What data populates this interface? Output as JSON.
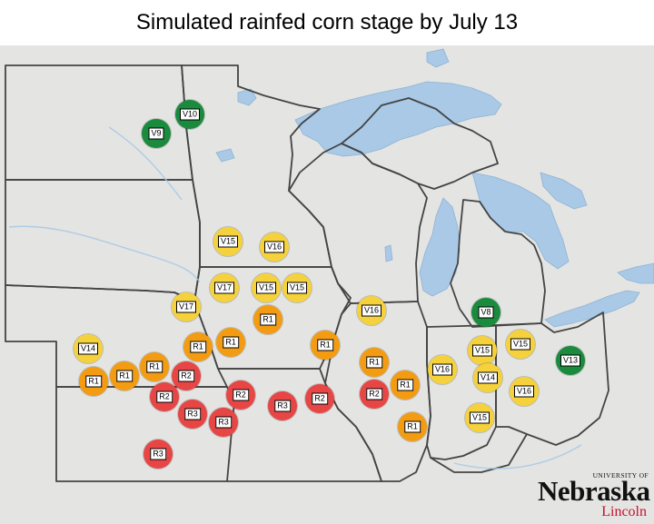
{
  "title": "Simulated rainfed corn stage by July 13",
  "colors": {
    "V-early": "#1a8a3d",
    "V-late": "#f5d23c",
    "R1": "#f39c12",
    "R2plus": "#e84545",
    "water": "#a9c9e6",
    "land": "#e4e4e2",
    "border": "#444444"
  },
  "markers": [
    {
      "label": "V10",
      "color": "#1a8a3d"
    },
    {
      "label": "V9",
      "color": "#1a8a3d"
    },
    {
      "label": "V15",
      "color": "#f5d23c"
    },
    {
      "label": "V16",
      "color": "#f5d23c"
    },
    {
      "label": "V17",
      "color": "#f5d23c"
    },
    {
      "label": "V15",
      "color": "#f5d23c"
    },
    {
      "label": "V15",
      "color": "#f5d23c"
    },
    {
      "label": "V17",
      "color": "#f5d23c"
    },
    {
      "label": "R1",
      "color": "#f39c12"
    },
    {
      "label": "V16",
      "color": "#f5d23c"
    },
    {
      "label": "V8",
      "color": "#1a8a3d"
    },
    {
      "label": "V14",
      "color": "#f5d23c"
    },
    {
      "label": "R1",
      "color": "#f39c12"
    },
    {
      "label": "R1",
      "color": "#f39c12"
    },
    {
      "label": "R1",
      "color": "#f39c12"
    },
    {
      "label": "V15",
      "color": "#f5d23c"
    },
    {
      "label": "V15",
      "color": "#f5d23c"
    },
    {
      "label": "V13",
      "color": "#1a8a3d"
    },
    {
      "label": "R1",
      "color": "#f39c12"
    },
    {
      "label": "R1",
      "color": "#f39c12"
    },
    {
      "label": "R1",
      "color": "#f39c12"
    },
    {
      "label": "R2",
      "color": "#e84545"
    },
    {
      "label": "R1",
      "color": "#f39c12"
    },
    {
      "label": "V16",
      "color": "#f5d23c"
    },
    {
      "label": "V14",
      "color": "#f5d23c"
    },
    {
      "label": "R1",
      "color": "#f39c12"
    },
    {
      "label": "V16",
      "color": "#f5d23c"
    },
    {
      "label": "R2",
      "color": "#e84545"
    },
    {
      "label": "R2",
      "color": "#e84545"
    },
    {
      "label": "R3",
      "color": "#e84545"
    },
    {
      "label": "R2",
      "color": "#e84545"
    },
    {
      "label": "R2",
      "color": "#e84545"
    },
    {
      "label": "R3",
      "color": "#e84545"
    },
    {
      "label": "R3",
      "color": "#e84545"
    },
    {
      "label": "R1",
      "color": "#f39c12"
    },
    {
      "label": "V15",
      "color": "#f5d23c"
    },
    {
      "label": "R3",
      "color": "#e84545"
    }
  ],
  "logo": {
    "university": "UNIVERSITY OF",
    "name": "Nebraska",
    "campus": "Lincoln"
  }
}
